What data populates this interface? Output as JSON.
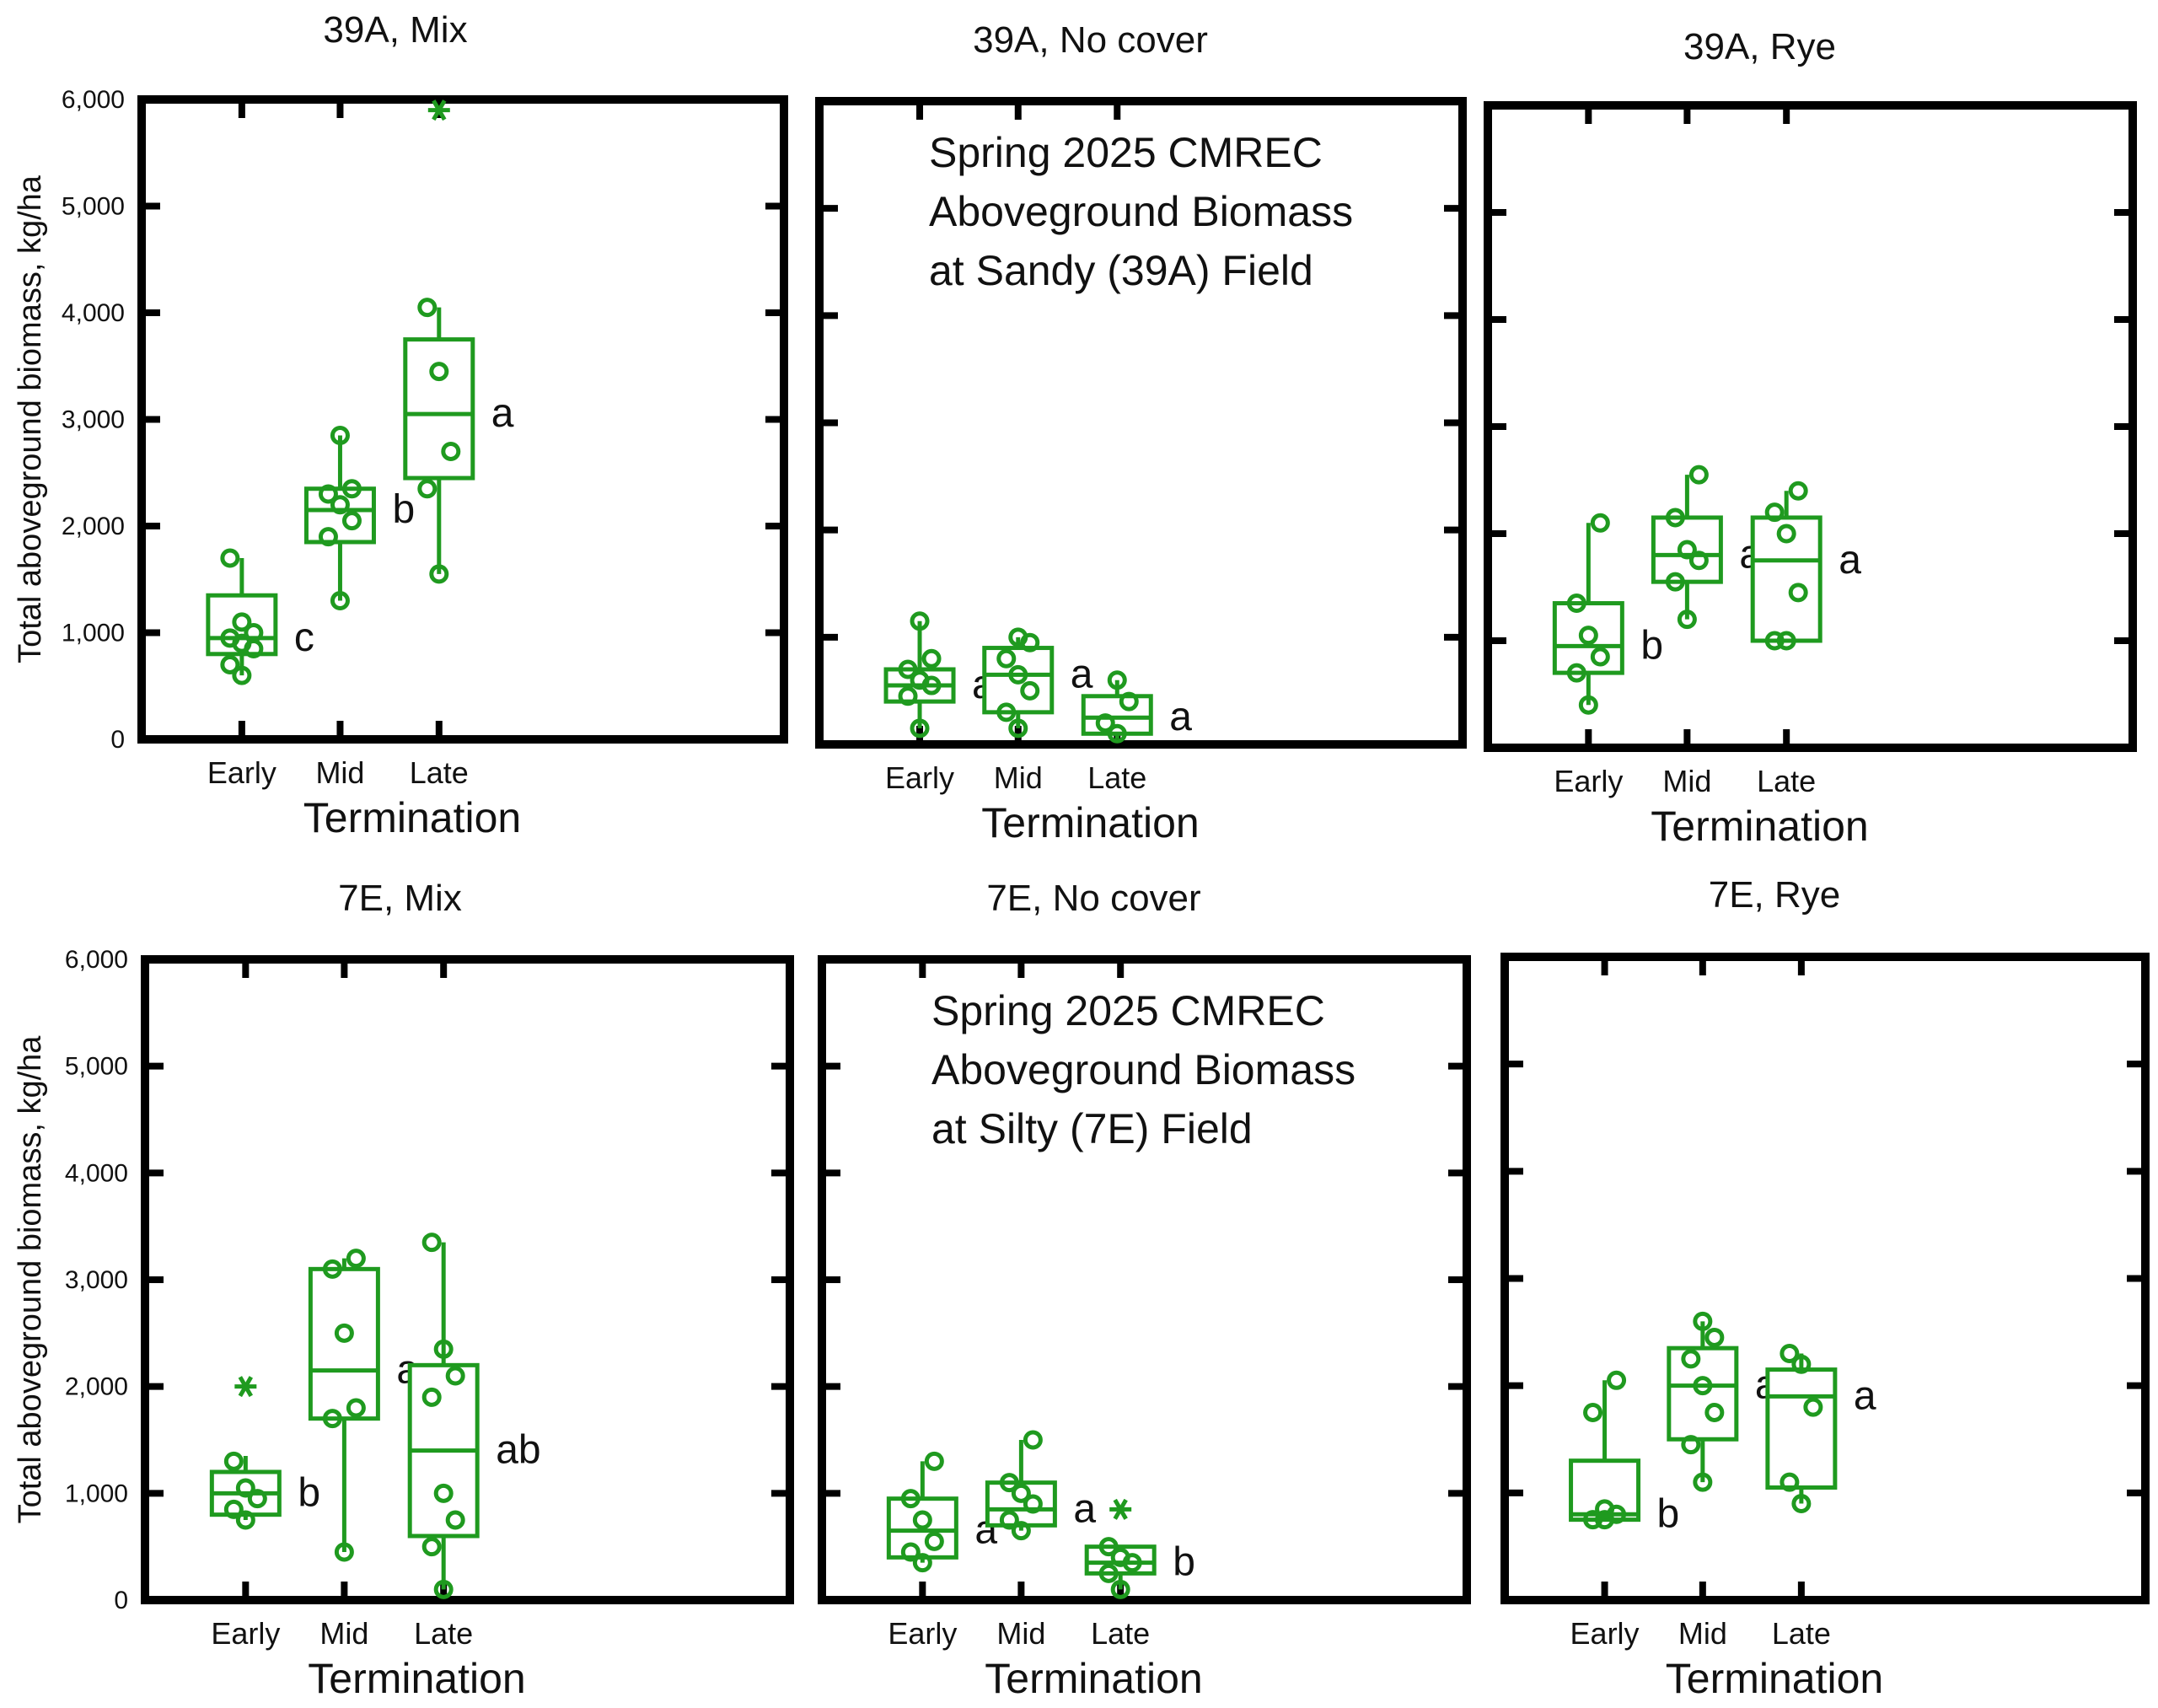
{
  "colors": {
    "series": "#1f9a1f",
    "frame": "#000000",
    "text": "#111111"
  },
  "shared": {
    "ylabel": "Total aboveground biomass, kg/ha",
    "xlabel": "Termination",
    "y_ticks": [
      "0",
      "1,000",
      "2,000",
      "3,000",
      "4,000",
      "5,000",
      "6,000"
    ]
  },
  "chart_data": [
    {
      "type": "box",
      "title": "39A, Mix",
      "xlabel": "Termination",
      "ylabel": "Total aboveground biomass, kg/ha",
      "ylim": [
        0,
        6000
      ],
      "categories": [
        "Early",
        "Mid",
        "Late"
      ],
      "boxes": [
        {
          "category": "Early",
          "q1": 800,
          "median": 950,
          "q3": 1350,
          "whisker_low": 600,
          "whisker_high": 1700,
          "points": [
            600,
            700,
            850,
            900,
            950,
            1000,
            1100,
            1700
          ],
          "outliers": [],
          "letter": "c"
        },
        {
          "category": "Mid",
          "q1": 1850,
          "median": 2150,
          "q3": 2350,
          "whisker_low": 1300,
          "whisker_high": 2850,
          "points": [
            1300,
            1900,
            2050,
            2200,
            2300,
            2350,
            2850
          ],
          "outliers": [],
          "letter": "b"
        },
        {
          "category": "Late",
          "q1": 2450,
          "median": 3050,
          "q3": 3750,
          "whisker_low": 1550,
          "whisker_high": 4050,
          "points": [
            1550,
            2350,
            2700,
            3450,
            4050
          ],
          "outliers": [
            5900
          ],
          "letter": "a"
        }
      ]
    },
    {
      "type": "box",
      "title": "39A, No cover",
      "xlabel": "Termination",
      "ylim": [
        0,
        6000
      ],
      "categories": [
        "Early",
        "Mid",
        "Late"
      ],
      "annotation": [
        "Spring 2025 CMREC",
        "Aboveground Biomass",
        "at Sandy (39A) Field"
      ],
      "boxes": [
        {
          "category": "Early",
          "q1": 400,
          "median": 550,
          "q3": 700,
          "whisker_low": 150,
          "whisker_high": 1150,
          "points": [
            150,
            450,
            550,
            600,
            700,
            800,
            1150
          ],
          "outliers": [],
          "letter": "a"
        },
        {
          "category": "Mid",
          "q1": 300,
          "median": 650,
          "q3": 900,
          "whisker_low": 150,
          "whisker_high": 1000,
          "points": [
            150,
            300,
            500,
            650,
            800,
            950,
            1000
          ],
          "outliers": [],
          "letter": "a"
        },
        {
          "category": "Late",
          "q1": 100,
          "median": 250,
          "q3": 450,
          "whisker_low": 50,
          "whisker_high": 600,
          "points": [
            100,
            200,
            400,
            600
          ],
          "outliers": [],
          "letter": "a"
        }
      ]
    },
    {
      "type": "box",
      "title": "39A, Rye",
      "xlabel": "Termination",
      "ylim": [
        0,
        6000
      ],
      "categories": [
        "Early",
        "Mid",
        "Late"
      ],
      "boxes": [
        {
          "category": "Early",
          "q1": 700,
          "median": 950,
          "q3": 1350,
          "whisker_low": 400,
          "whisker_high": 2100,
          "points": [
            400,
            700,
            850,
            1050,
            1350,
            2100
          ],
          "outliers": [],
          "letter": "b"
        },
        {
          "category": "Mid",
          "q1": 1550,
          "median": 1800,
          "q3": 2150,
          "whisker_low": 1200,
          "whisker_high": 2550,
          "points": [
            1200,
            1550,
            1750,
            1850,
            2150,
            2550
          ],
          "outliers": [],
          "letter": "a"
        },
        {
          "category": "Late",
          "q1": 1000,
          "median": 1750,
          "q3": 2150,
          "whisker_low": 1000,
          "whisker_high": 2400,
          "points": [
            1000,
            1000,
            1450,
            2000,
            2200,
            2400
          ],
          "outliers": [],
          "letter": "a"
        }
      ]
    },
    {
      "type": "box",
      "title": "7E, Mix",
      "xlabel": "Termination",
      "ylabel": "Total aboveground biomass, kg/ha",
      "ylim": [
        0,
        6000
      ],
      "categories": [
        "Early",
        "Mid",
        "Late"
      ],
      "boxes": [
        {
          "category": "Early",
          "q1": 800,
          "median": 1000,
          "q3": 1200,
          "whisker_low": 750,
          "whisker_high": 1350,
          "points": [
            750,
            850,
            950,
            1050,
            1300
          ],
          "outliers": [
            2000
          ],
          "letter": "b"
        },
        {
          "category": "Mid",
          "q1": 1700,
          "median": 2150,
          "q3": 3100,
          "whisker_low": 450,
          "whisker_high": 3200,
          "points": [
            450,
            1700,
            1800,
            2500,
            3100,
            3200
          ],
          "outliers": [],
          "letter": "a"
        },
        {
          "category": "Late",
          "q1": 600,
          "median": 1400,
          "q3": 2200,
          "whisker_low": 100,
          "whisker_high": 3350,
          "points": [
            100,
            500,
            750,
            1000,
            1900,
            2100,
            2350,
            3350
          ],
          "outliers": [],
          "letter": "ab"
        }
      ]
    },
    {
      "type": "box",
      "title": "7E, No cover",
      "xlabel": "Termination",
      "ylim": [
        0,
        6000
      ],
      "categories": [
        "Early",
        "Mid",
        "Late"
      ],
      "annotation": [
        "Spring 2025 CMREC",
        "Aboveground Biomass",
        "at Silty (7E) Field"
      ],
      "boxes": [
        {
          "category": "Early",
          "q1": 400,
          "median": 650,
          "q3": 950,
          "whisker_low": 350,
          "whisker_high": 1300,
          "points": [
            350,
            450,
            550,
            750,
            950,
            1300
          ],
          "outliers": [],
          "letter": "a"
        },
        {
          "category": "Mid",
          "q1": 700,
          "median": 850,
          "q3": 1100,
          "whisker_low": 650,
          "whisker_high": 1500,
          "points": [
            650,
            750,
            900,
            1000,
            1100,
            1500
          ],
          "outliers": [],
          "letter": "a"
        },
        {
          "category": "Late",
          "q1": 250,
          "median": 350,
          "q3": 500,
          "whisker_low": 100,
          "whisker_high": 500,
          "points": [
            100,
            250,
            350,
            400,
            500
          ],
          "outliers": [
            850
          ],
          "letter": "b"
        }
      ]
    },
    {
      "type": "box",
      "title": "7E, Rye",
      "xlabel": "Termination",
      "ylim": [
        0,
        6000
      ],
      "categories": [
        "Early",
        "Mid",
        "Late"
      ],
      "boxes": [
        {
          "category": "Early",
          "q1": 750,
          "median": 800,
          "q3": 1300,
          "whisker_low": 750,
          "whisker_high": 2050,
          "points": [
            750,
            750,
            800,
            850,
            1750,
            2050
          ],
          "outliers": [],
          "letter": "b"
        },
        {
          "category": "Mid",
          "q1": 1500,
          "median": 2000,
          "q3": 2350,
          "whisker_low": 1100,
          "whisker_high": 2600,
          "points": [
            1100,
            1450,
            1750,
            2000,
            2250,
            2450,
            2600
          ],
          "outliers": [],
          "letter": "a"
        },
        {
          "category": "Late",
          "q1": 1050,
          "median": 1900,
          "q3": 2150,
          "whisker_low": 900,
          "whisker_high": 2300,
          "points": [
            900,
            1100,
            1800,
            2200,
            2300
          ],
          "outliers": [],
          "letter": "a"
        }
      ]
    }
  ]
}
